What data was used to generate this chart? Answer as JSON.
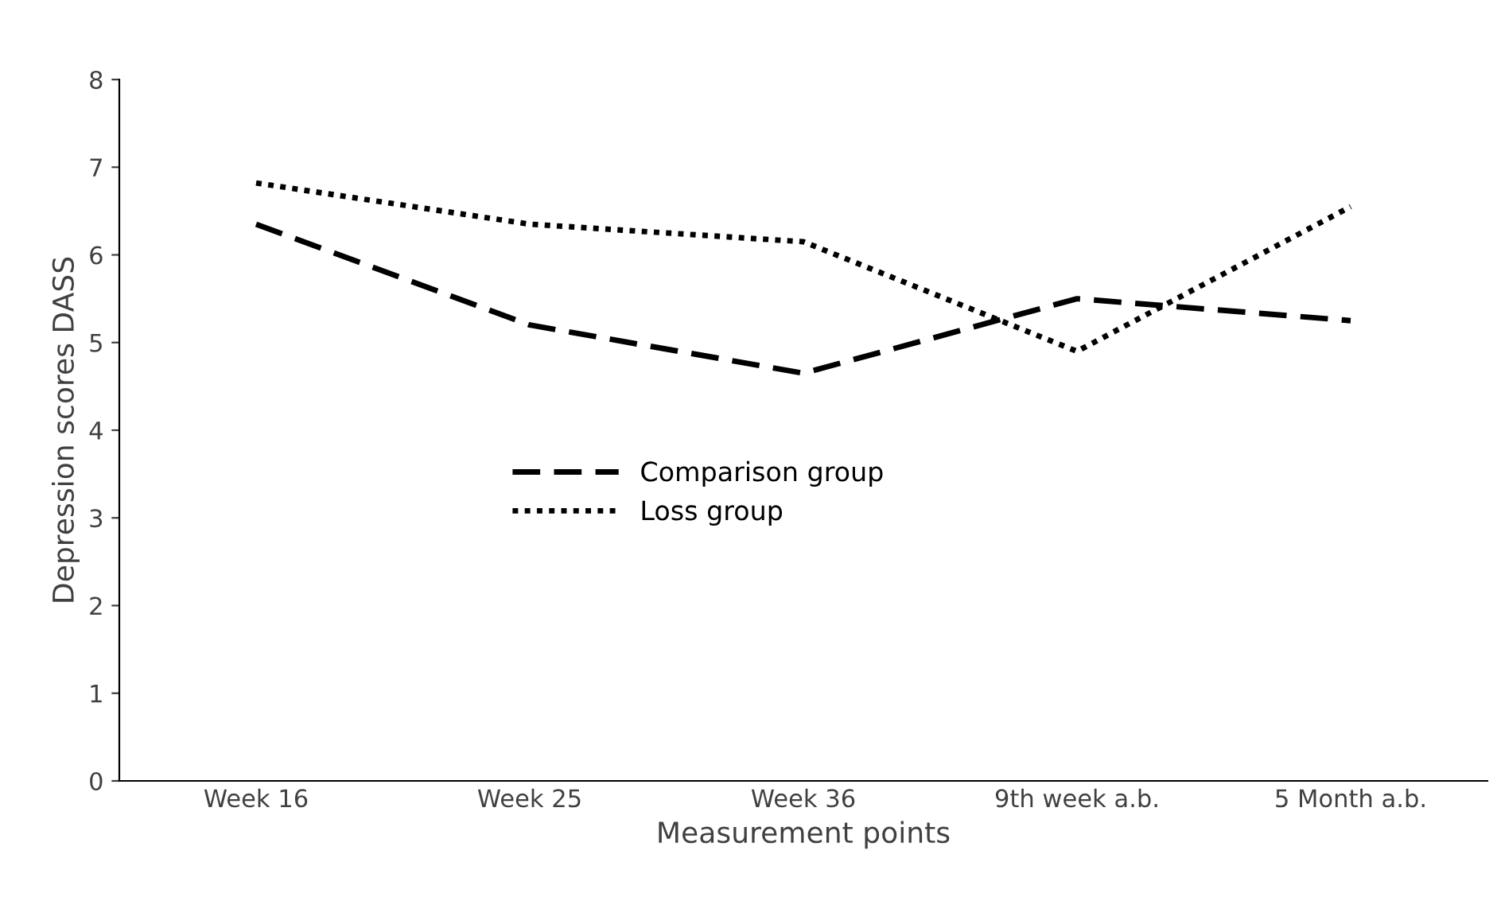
{
  "chart_data": {
    "type": "line",
    "xlabel": "Measurement points",
    "ylabel": "Depression scores DASS",
    "categories": [
      "Week 16",
      "Week 25",
      "Week 36",
      "9th week a.b.",
      "5 Month a.b."
    ],
    "series": [
      {
        "name": "Comparison group",
        "color": "#000000",
        "line_style": "dashed",
        "values": [
          6.35,
          5.2,
          4.65,
          5.5,
          5.25
        ]
      },
      {
        "name": "Loss group",
        "color": "#000000",
        "line_style": "dotted",
        "values": [
          6.82,
          6.35,
          6.15,
          4.9,
          6.55
        ]
      }
    ],
    "ylim": [
      0,
      8
    ],
    "yticks": [
      0,
      1,
      2,
      3,
      4,
      5,
      6,
      7,
      8
    ],
    "grid": false,
    "legend": "center left",
    "marker": "none"
  }
}
